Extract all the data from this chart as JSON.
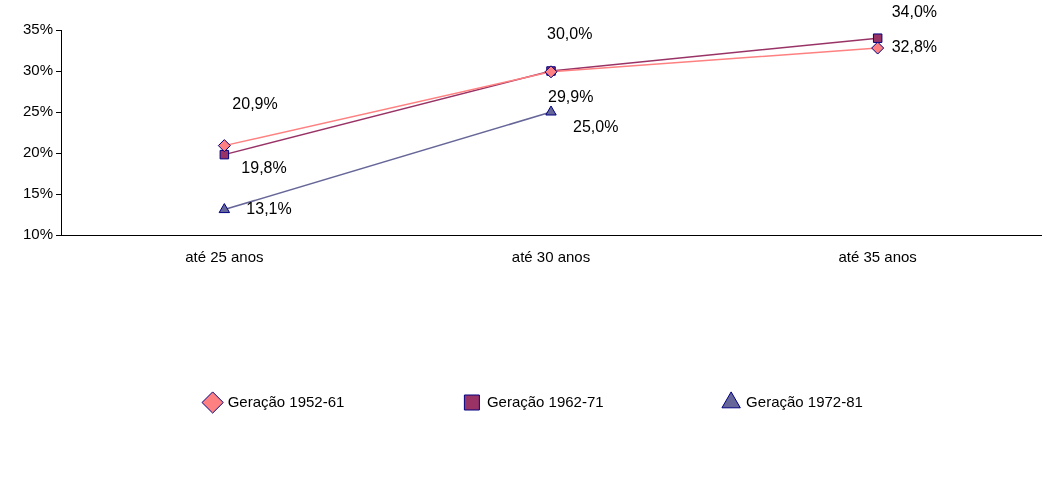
{
  "chart_data": {
    "type": "line",
    "categories": [
      "até 25 anos",
      "até 30 anos",
      "até 35 anos"
    ],
    "series": [
      {
        "name": "Geração 1952-61",
        "color": "#ff8080",
        "marker": "diamond",
        "values": [
          20.9,
          29.9,
          32.8
        ],
        "value_labels": [
          "20,9%",
          "29,9%",
          "32,8%"
        ]
      },
      {
        "name": "Geração 1962-71",
        "color": "#993366",
        "marker": "square",
        "values": [
          19.8,
          30.0,
          34.0
        ],
        "value_labels": [
          "19,8%",
          "30,0%",
          "34,0%"
        ]
      },
      {
        "name": "Geração 1972-81",
        "color": "#666699",
        "marker": "triangle",
        "values": [
          13.1,
          25.0,
          null
        ],
        "value_labels": [
          "13,1%",
          "25,0%",
          null
        ]
      }
    ],
    "ylim": [
      10,
      35
    ],
    "yticks": [
      {
        "value": 10,
        "label": "10%"
      },
      {
        "value": 15,
        "label": "15%"
      },
      {
        "value": 20,
        "label": "20%"
      },
      {
        "value": 25,
        "label": "25%"
      },
      {
        "value": 30,
        "label": "30%"
      },
      {
        "value": 35,
        "label": "35%"
      }
    ],
    "grid": false,
    "legend": "bottom"
  }
}
